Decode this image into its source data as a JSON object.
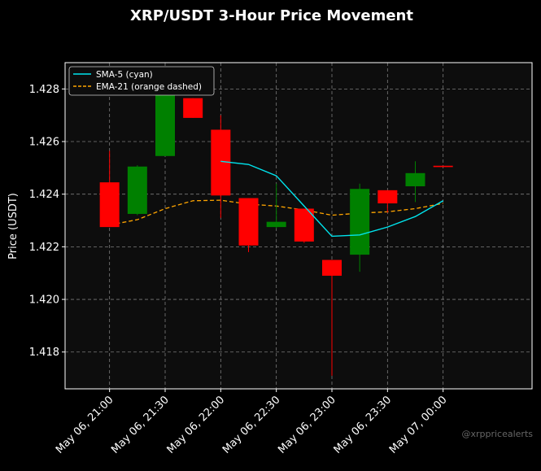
{
  "chart_data": {
    "type": "candlestick",
    "title": "XRP/USDT 3-Hour Price Movement",
    "xlabel": "",
    "ylabel": "Price (USDT)",
    "ylim": [
      1.4166,
      1.429
    ],
    "yticks": [
      1.418,
      1.42,
      1.422,
      1.424,
      1.426,
      1.428
    ],
    "ytick_labels": [
      "1.418",
      "1.420",
      "1.422",
      "1.424",
      "1.426",
      "1.428"
    ],
    "xlim": [
      "2025-05-06T20:36",
      "2025-05-07T00:48"
    ],
    "xticks": [
      "2025-05-06T21:00",
      "2025-05-06T21:30",
      "2025-05-06T22:00",
      "2025-05-06T22:30",
      "2025-05-06T23:00",
      "2025-05-06T23:30",
      "2025-05-07T00:00"
    ],
    "xtick_labels": [
      "May 06, 21:00",
      "May 06, 21:30",
      "May 06, 22:00",
      "May 06, 22:30",
      "May 06, 23:00",
      "May 06, 23:30",
      "May 07, 00:00"
    ],
    "grid": true,
    "legend_position": "top-left",
    "colors": {
      "background": "#000000",
      "plot_background": "#0d0d0d",
      "up": "#008000",
      "down": "#ff0000",
      "sma": "#00e5ee",
      "ema": "#ffa500",
      "grid": "#aaaaaa"
    },
    "candles": [
      {
        "time": "2025-05-06T21:00",
        "open": 1.42445,
        "high": 1.42565,
        "low": 1.42275,
        "close": 1.42275
      },
      {
        "time": "2025-05-06T21:15",
        "open": 1.42325,
        "high": 1.4251,
        "low": 1.4232,
        "close": 1.42505
      },
      {
        "time": "2025-05-06T21:30",
        "open": 1.42545,
        "high": 1.4285,
        "low": 1.42545,
        "close": 1.4285
      },
      {
        "time": "2025-05-06T21:45",
        "open": 1.42765,
        "high": 1.42765,
        "low": 1.4269,
        "close": 1.4269
      },
      {
        "time": "2025-05-06T22:00",
        "open": 1.42645,
        "high": 1.427,
        "low": 1.4231,
        "close": 1.42395
      },
      {
        "time": "2025-05-06T22:15",
        "open": 1.42385,
        "high": 1.42385,
        "low": 1.4218,
        "close": 1.42205
      },
      {
        "time": "2025-05-06T22:30",
        "open": 1.42275,
        "high": 1.4244,
        "low": 1.4227,
        "close": 1.42295
      },
      {
        "time": "2025-05-06T22:45",
        "open": 1.42345,
        "high": 1.42345,
        "low": 1.42215,
        "close": 1.4222
      },
      {
        "time": "2025-05-06T23:00",
        "open": 1.4215,
        "high": 1.4215,
        "low": 1.4171,
        "close": 1.4209
      },
      {
        "time": "2025-05-06T23:15",
        "open": 1.4217,
        "high": 1.4244,
        "low": 1.42105,
        "close": 1.4242
      },
      {
        "time": "2025-05-06T23:30",
        "open": 1.42415,
        "high": 1.42415,
        "low": 1.4233,
        "close": 1.42365
      },
      {
        "time": "2025-05-06T23:45",
        "open": 1.4243,
        "high": 1.42525,
        "low": 1.4237,
        "close": 1.4248
      },
      {
        "time": "2025-05-07T00:00",
        "open": 1.42508,
        "high": 1.42508,
        "low": 1.42503,
        "close": 1.42503
      }
    ],
    "series": [
      {
        "name": "SMA-5 (cyan)",
        "style": "solid",
        "color": "#00e5ee",
        "points": [
          {
            "time": "2025-05-06T22:00",
            "value": 1.42525
          },
          {
            "time": "2025-05-06T22:15",
            "value": 1.42513
          },
          {
            "time": "2025-05-06T22:30",
            "value": 1.4247
          },
          {
            "time": "2025-05-06T22:45",
            "value": 1.42355
          },
          {
            "time": "2025-05-06T23:00",
            "value": 1.4224
          },
          {
            "time": "2025-05-06T23:15",
            "value": 1.42245
          },
          {
            "time": "2025-05-06T23:30",
            "value": 1.42275
          },
          {
            "time": "2025-05-06T23:45",
            "value": 1.42315
          },
          {
            "time": "2025-05-07T00:00",
            "value": 1.42375
          }
        ]
      },
      {
        "name": "EMA-21 (orange dashed)",
        "style": "dashed",
        "color": "#ffa500",
        "points": [
          {
            "time": "2025-05-06T21:00",
            "value": 1.42283
          },
          {
            "time": "2025-05-06T21:15",
            "value": 1.42303
          },
          {
            "time": "2025-05-06T21:30",
            "value": 1.42345
          },
          {
            "time": "2025-05-06T21:45",
            "value": 1.42375
          },
          {
            "time": "2025-05-06T22:00",
            "value": 1.42377
          },
          {
            "time": "2025-05-06T22:15",
            "value": 1.42362
          },
          {
            "time": "2025-05-06T22:30",
            "value": 1.42355
          },
          {
            "time": "2025-05-06T22:45",
            "value": 1.4234
          },
          {
            "time": "2025-05-06T23:00",
            "value": 1.4232
          },
          {
            "time": "2025-05-06T23:15",
            "value": 1.42328
          },
          {
            "time": "2025-05-06T23:30",
            "value": 1.42333
          },
          {
            "time": "2025-05-06T23:45",
            "value": 1.42345
          },
          {
            "time": "2025-05-07T00:00",
            "value": 1.42365
          }
        ]
      }
    ]
  },
  "watermark": "@xrppricealerts"
}
